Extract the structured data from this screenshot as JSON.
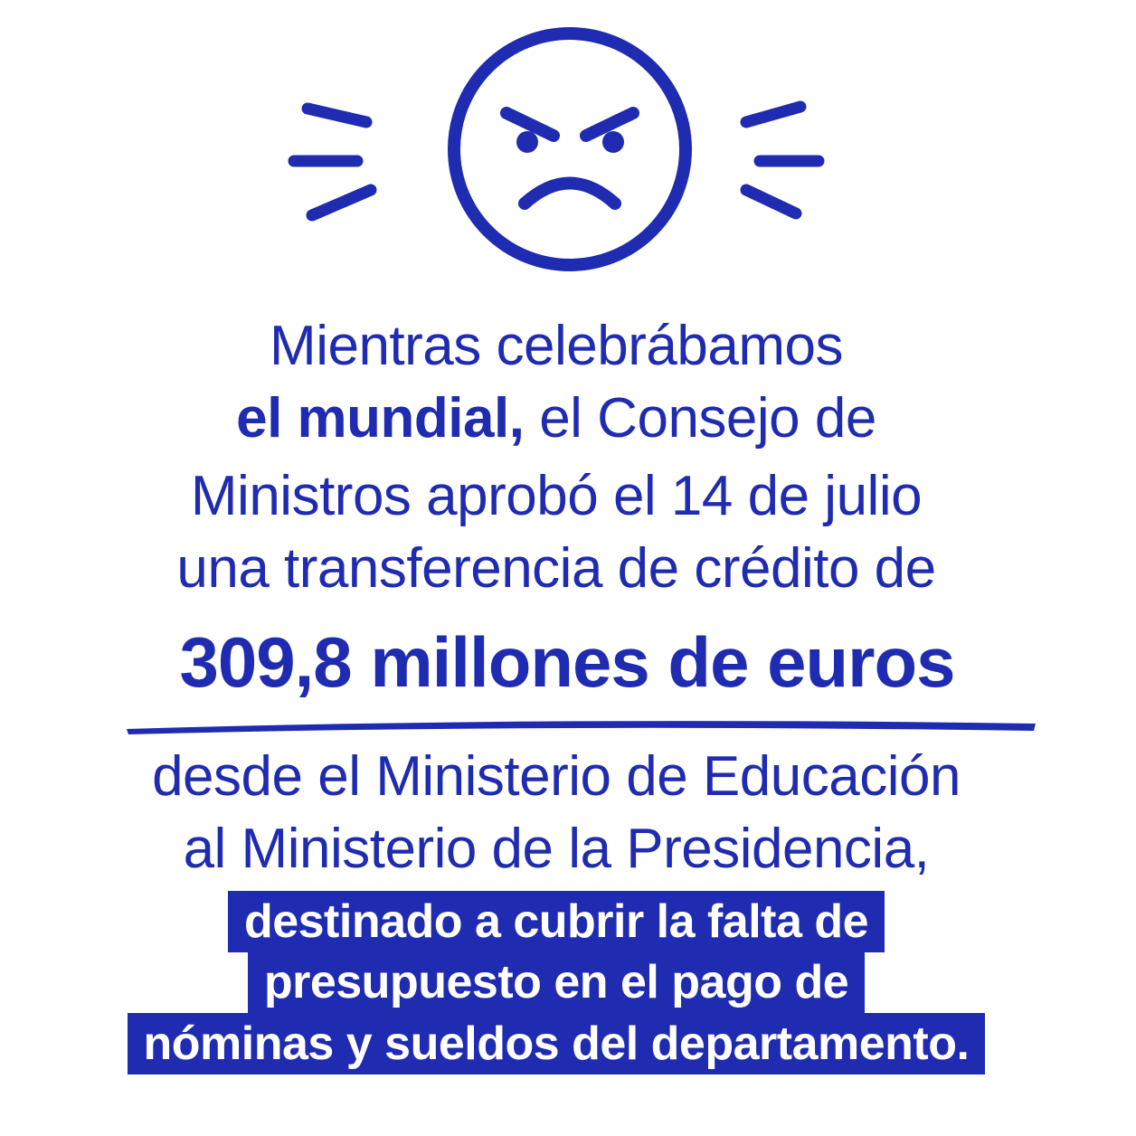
{
  "intro": {
    "text_1": "Mientras celebrábamos",
    "emphasis": "el mundial,",
    "text_2": "el Consejo de",
    "text_3": "Ministros aprobó el 14 de julio",
    "text_4": "una transferencia de crédito de"
  },
  "amount": "309,8 millones de euros",
  "transfer": {
    "line_1": "desde el Ministerio de Educación",
    "line_2": "al Ministerio de la Presidencia,"
  },
  "highlight": {
    "lines": [
      "destinado a cubrir la falta de",
      "presupuesto en el pago de",
      "nóminas y sueldos del departamento."
    ]
  }
}
